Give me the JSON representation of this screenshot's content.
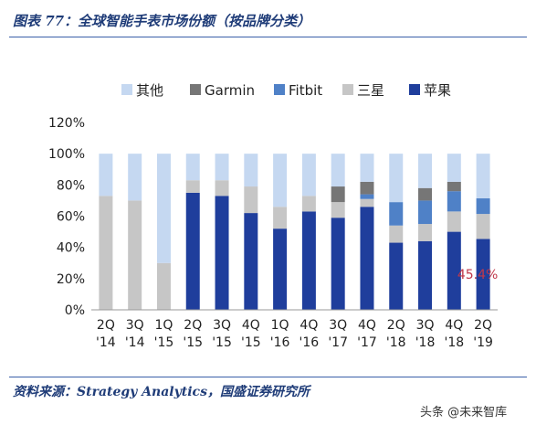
{
  "figure": {
    "title": "图表 77：全球智能手表市场份额（按品牌分类）",
    "source": "资料来源：Strategy Analytics，国盛证券研究所",
    "watermark": "头条 @未来智库"
  },
  "chart_data": {
    "type": "bar",
    "stacked": true,
    "categories": [
      "2Q\n'14",
      "3Q\n'14",
      "1Q\n'15",
      "2Q\n'15",
      "3Q\n'15",
      "4Q\n'15",
      "1Q\n'16",
      "4Q\n'16",
      "3Q\n'17",
      "4Q\n'17",
      "2Q\n'18",
      "3Q\n'18",
      "4Q\n'18",
      "2Q\n'19"
    ],
    "series": [
      {
        "name": "苹果",
        "color": "#1f3e9c",
        "values": [
          0,
          0,
          0,
          75,
          73,
          62,
          52,
          63,
          59,
          66,
          43,
          44,
          50,
          45.4
        ]
      },
      {
        "name": "三星",
        "color": "#c6c6c6",
        "values": [
          73,
          70,
          30,
          8,
          10,
          17,
          14,
          10,
          10,
          5,
          11,
          11,
          13,
          16
        ]
      },
      {
        "name": "Fitbit",
        "color": "#4f81c7",
        "values": [
          0,
          0,
          0,
          0,
          0,
          0,
          0,
          0,
          0,
          3,
          15,
          15,
          13,
          10
        ]
      },
      {
        "name": "Garmin",
        "color": "#767676",
        "values": [
          0,
          0,
          0,
          0,
          0,
          0,
          0,
          0,
          10,
          8,
          0,
          8,
          6,
          0
        ]
      },
      {
        "name": "其他",
        "color": "#c5d8f1",
        "values": [
          27,
          30,
          70,
          17,
          17,
          21,
          34,
          27,
          21,
          18,
          31,
          22,
          18,
          28.6
        ]
      }
    ],
    "legend_order": [
      "其他",
      "Garmin",
      "Fitbit",
      "三星",
      "苹果"
    ],
    "legend_position": "top",
    "y_ticks": [
      "0%",
      "20%",
      "40%",
      "60%",
      "80%",
      "100%",
      "120%"
    ],
    "ylim": [
      0,
      120
    ],
    "grid": false,
    "annotation": {
      "text": "45.4%",
      "category_index": 13,
      "value": 45.4,
      "color": "#c0384a"
    }
  }
}
